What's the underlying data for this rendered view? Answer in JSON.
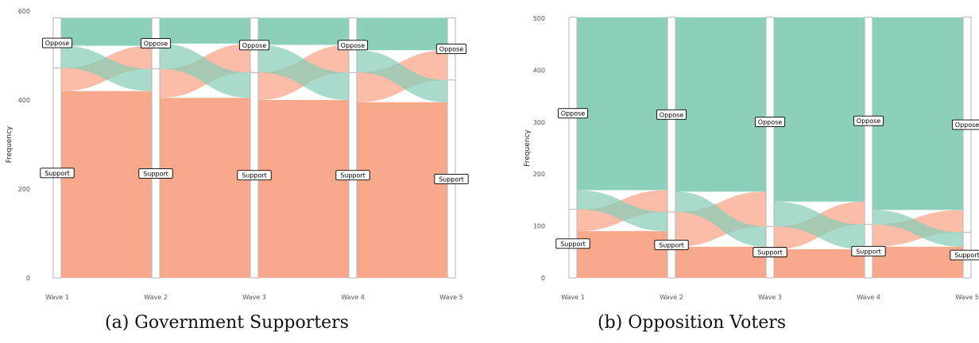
{
  "chart_data": [
    {
      "type": "alluvial",
      "caption": "(a) Government Supporters",
      "ylabel": "Frequency",
      "ylim": [
        0,
        600
      ],
      "yticks": [
        0,
        200,
        400,
        600
      ],
      "axes": [
        "Wave 1",
        "Wave 2",
        "Wave 3",
        "Wave 4",
        "Wave 5"
      ],
      "strata_order": [
        "Support",
        "Oppose"
      ],
      "colors": {
        "Support": "#f9a485",
        "Oppose": "#86cdb7"
      },
      "total": 585,
      "strata": [
        {
          "Support": 472,
          "Oppose": 113
        },
        {
          "Support": 470,
          "Oppose": 115
        },
        {
          "Support": 462,
          "Oppose": 123
        },
        {
          "Support": 462,
          "Oppose": 123
        },
        {
          "Support": 445,
          "Oppose": 140
        }
      ],
      "flows": [
        {
          "Support->Support": 420,
          "Support->Oppose": 52,
          "Oppose->Support": 50,
          "Oppose->Oppose": 63
        },
        {
          "Support->Support": 405,
          "Support->Oppose": 65,
          "Oppose->Support": 57,
          "Oppose->Oppose": 58
        },
        {
          "Support->Support": 400,
          "Support->Oppose": 62,
          "Oppose->Support": 62,
          "Oppose->Oppose": 61
        },
        {
          "Support->Support": 395,
          "Support->Oppose": 67,
          "Oppose->Support": 50,
          "Oppose->Oppose": 73
        }
      ]
    },
    {
      "type": "alluvial",
      "caption": "(b) Opposition Voters",
      "ylabel": "Frequency",
      "ylim": [
        0,
        500
      ],
      "yticks": [
        0,
        100,
        200,
        300,
        400,
        500
      ],
      "axes": [
        "Wave 1",
        "Wave 2",
        "Wave 3",
        "Wave 4",
        "Wave 5"
      ],
      "strata_order": [
        "Support",
        "Oppose"
      ],
      "colors": {
        "Support": "#f9a485",
        "Oppose": "#86cdb7"
      },
      "total": 502,
      "strata": [
        {
          "Support": 132,
          "Oppose": 370
        },
        {
          "Support": 127,
          "Oppose": 375
        },
        {
          "Support": 99,
          "Oppose": 403
        },
        {
          "Support": 103,
          "Oppose": 399
        },
        {
          "Support": 88,
          "Oppose": 414
        }
      ],
      "flows": [
        {
          "Support->Support": 90,
          "Support->Oppose": 42,
          "Oppose->Support": 37,
          "Oppose->Oppose": 333
        },
        {
          "Support->Support": 60,
          "Support->Oppose": 67,
          "Oppose->Support": 39,
          "Oppose->Oppose": 336
        },
        {
          "Support->Support": 55,
          "Support->Oppose": 44,
          "Oppose->Support": 48,
          "Oppose->Oppose": 355
        },
        {
          "Support->Support": 60,
          "Support->Oppose": 43,
          "Oppose->Support": 28,
          "Oppose->Oppose": 371
        }
      ]
    }
  ]
}
